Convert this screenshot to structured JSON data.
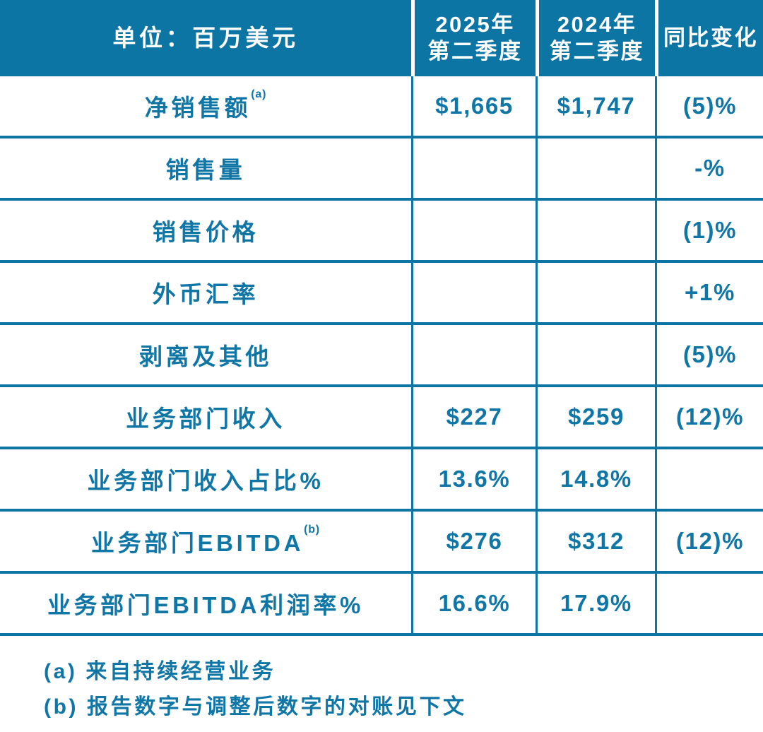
{
  "colors": {
    "accent": "#0d75a4",
    "text": "#0f76a6",
    "header_text": "#ffffff",
    "background": "#ffffff"
  },
  "table": {
    "header": {
      "units_label": "单位：百万美元",
      "col_2025_line1": "2025年",
      "col_2025_line2": "第二季度",
      "col_2024_line1": "2024年",
      "col_2024_line2": "第二季度",
      "col_yoy": "同比变化"
    },
    "rows": [
      {
        "label": "净销售额",
        "sup": "(a)",
        "q2_2025": "$1,665",
        "q2_2024": "$1,747",
        "yoy": "(5)%"
      },
      {
        "label": "销售量",
        "sup": "",
        "q2_2025": "",
        "q2_2024": "",
        "yoy": "-%"
      },
      {
        "label": "销售价格",
        "sup": "",
        "q2_2025": "",
        "q2_2024": "",
        "yoy": "(1)%"
      },
      {
        "label": "外币汇率",
        "sup": "",
        "q2_2025": "",
        "q2_2024": "",
        "yoy": "+1%"
      },
      {
        "label": "剥离及其他",
        "sup": "",
        "q2_2025": "",
        "q2_2024": "",
        "yoy": "(5)%"
      },
      {
        "label": "业务部门收入",
        "sup": "",
        "q2_2025": "$227",
        "q2_2024": "$259",
        "yoy": "(12)%"
      },
      {
        "label": "业务部门收入占比%",
        "sup": "",
        "q2_2025": "13.6%",
        "q2_2024": "14.8%",
        "yoy": ""
      },
      {
        "label": "业务部门EBITDA",
        "sup": "(b)",
        "q2_2025": "$276",
        "q2_2024": "$312",
        "yoy": "(12)%"
      },
      {
        "label": "业务部门EBITDA利润率%",
        "sup": "",
        "q2_2025": "16.6%",
        "q2_2024": "17.9%",
        "yoy": ""
      }
    ],
    "footnotes": [
      "(a) 来自持续经营业务",
      "(b) 报告数字与调整后数字的对账见下文"
    ]
  }
}
